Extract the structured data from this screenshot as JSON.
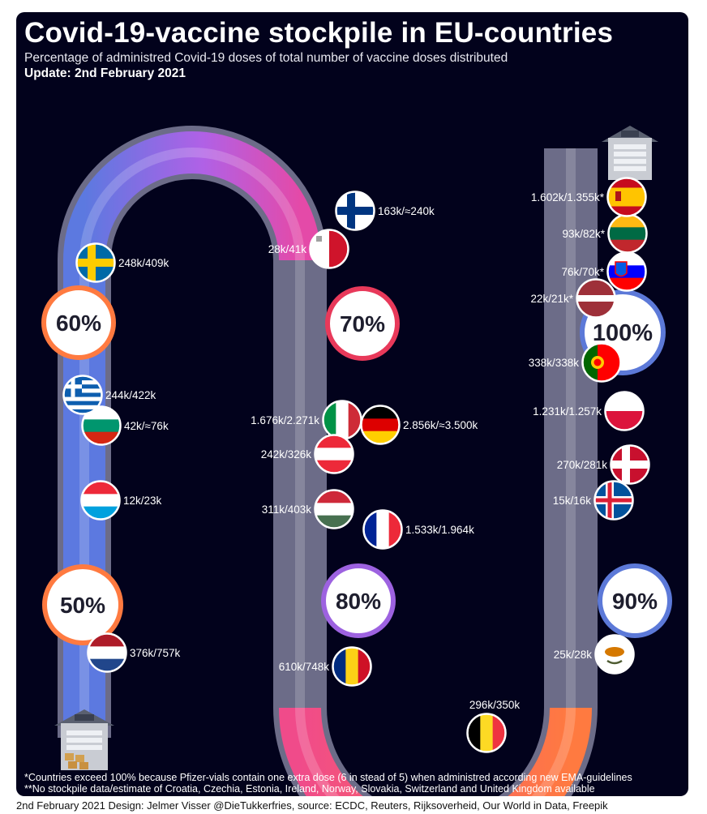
{
  "header": {
    "title": "Covid-19-vaccine stockpile in EU-countries",
    "subtitle": "Percentage of administred Covid-19 doses of total number of vaccine doses distributed",
    "update": "Update: 2nd February 2021"
  },
  "footnotes": {
    "note1": "*Countries exceed 100% because Pfizer-vials contain one extra dose (6 in stead of 5) when administred according new EMA-guidelines",
    "note2": "**No stockpile data/estimate of Croatia, Czechia, Estonia, Ireland, Norway, Slovakia, Switzerland and United Kingdom available"
  },
  "credit": "2nd February 2021 Design: Jelmer Visser @DieTukkerfries, source: ECDC, Reuters, Rijksoverheid, Our World in Data, Freepik",
  "colors": {
    "background": "#02021c",
    "track_start": "#5c79e0",
    "track_mid_purple": "#b061e6",
    "track_pink": "#e8398f",
    "track_end": "#ff7a40",
    "marker_50": "#ff7a40",
    "marker_60": "#ff7a40",
    "marker_70": "#e8395a",
    "marker_80": "#9d62e0",
    "marker_90": "#5c79d8",
    "marker_100": "#5c79d8"
  },
  "chart_data": {
    "type": "track",
    "unit": "percent",
    "markers": [
      {
        "label": "50%",
        "value": 50
      },
      {
        "label": "60%",
        "value": 60
      },
      {
        "label": "70%",
        "value": 70
      },
      {
        "label": "80%",
        "value": 80
      },
      {
        "label": "90%",
        "value": 90
      },
      {
        "label": "100%",
        "value": 100
      }
    ],
    "countries": [
      {
        "flag": "netherlands",
        "label": "376k/757k",
        "administered_k": 376,
        "distributed_k": 757
      },
      {
        "flag": "luxembourg",
        "label": "12k/23k",
        "administered_k": 12,
        "distributed_k": 23
      },
      {
        "flag": "bulgaria",
        "label": "42k/≈76k",
        "administered_k": 42,
        "distributed_k": 76
      },
      {
        "flag": "greece",
        "label": "244k/422k",
        "administered_k": 244,
        "distributed_k": 422
      },
      {
        "flag": "sweden",
        "label": "248k/409k",
        "administered_k": 248,
        "distributed_k": 409
      },
      {
        "flag": "finland",
        "label": "163k/≈240k",
        "administered_k": 163,
        "distributed_k": 240
      },
      {
        "flag": "malta",
        "label": "28k/41k",
        "administered_k": 28,
        "distributed_k": 41
      },
      {
        "flag": "italy",
        "label": "1.676k/2.271k",
        "administered_k": 1676,
        "distributed_k": 2271
      },
      {
        "flag": "germany",
        "label": "2.856k/≈3.500k",
        "administered_k": 2856,
        "distributed_k": 3500
      },
      {
        "flag": "austria",
        "label": "242k/326k",
        "administered_k": 242,
        "distributed_k": 326
      },
      {
        "flag": "hungary",
        "label": "311k/403k",
        "administered_k": 311,
        "distributed_k": 403
      },
      {
        "flag": "france",
        "label": "1.533k/1.964k",
        "administered_k": 1533,
        "distributed_k": 1964
      },
      {
        "flag": "romania",
        "label": "610k/748k",
        "administered_k": 610,
        "distributed_k": 748
      },
      {
        "flag": "belgium",
        "label": "296k/350k",
        "administered_k": 296,
        "distributed_k": 350
      },
      {
        "flag": "cyprus",
        "label": "25k/28k",
        "administered_k": 25,
        "distributed_k": 28
      },
      {
        "flag": "iceland",
        "label": "15k/16k",
        "administered_k": 15,
        "distributed_k": 16
      },
      {
        "flag": "denmark",
        "label": "270k/281k",
        "administered_k": 270,
        "distributed_k": 281
      },
      {
        "flag": "poland",
        "label": "1.231k/1.257k",
        "administered_k": 1231,
        "distributed_k": 1257
      },
      {
        "flag": "portugal",
        "label": "338k/338k",
        "administered_k": 338,
        "distributed_k": 338
      },
      {
        "flag": "latvia",
        "label": "22k/21k*",
        "administered_k": 22,
        "distributed_k": 21
      },
      {
        "flag": "slovenia",
        "label": "76k/70k*",
        "administered_k": 76,
        "distributed_k": 70
      },
      {
        "flag": "lithuania",
        "label": "93k/82k*",
        "administered_k": 93,
        "distributed_k": 82
      },
      {
        "flag": "spain",
        "label": "1.602k/1.355k*",
        "administered_k": 1602,
        "distributed_k": 1355
      }
    ]
  }
}
